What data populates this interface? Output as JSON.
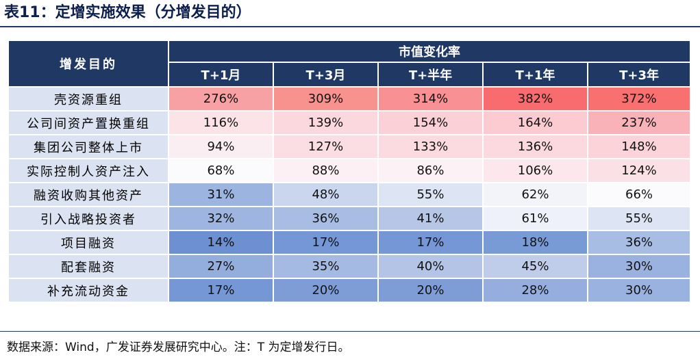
{
  "title": "表11：定增实施效果（分增发目的）",
  "footer": "数据来源：Wind，广发证券发展研究中心。注：T 为定增发行日。",
  "table": {
    "corner_header": "增发目的",
    "group_header": "市值变化率",
    "periods": [
      "T+1月",
      "T+3月",
      "T+半年",
      "T+1年",
      "T+3年"
    ],
    "rows": [
      {
        "label": "壳资源重组",
        "values": [
          "276%",
          "309%",
          "314%",
          "382%",
          "372%"
        ],
        "colors": [
          "#f8a1a5",
          "#f8928f",
          "#f89094",
          "#f86c6f",
          "#f8706f"
        ]
      },
      {
        "label": "公司间资产置换重组",
        "values": [
          "116%",
          "139%",
          "154%",
          "164%",
          "237%"
        ],
        "colors": [
          "#fbe3e8",
          "#fbd8de",
          "#fbd0d6",
          "#fbcbd1",
          "#f9b2b7"
        ]
      },
      {
        "label": "集团公司整体上市",
        "values": [
          "94%",
          "127%",
          "133%",
          "136%",
          "148%"
        ],
        "colors": [
          "#fbeef2",
          "#fbdee3",
          "#fbdbe0",
          "#fbd9df",
          "#fbd3d9"
        ]
      },
      {
        "label": "实际控制人资产注入",
        "values": [
          "68%",
          "88%",
          "86%",
          "106%",
          "124%"
        ],
        "colors": [
          "#fbfafc",
          "#fcf0f4",
          "#fcf1f5",
          "#fbe7ec",
          "#fbe0e6"
        ]
      },
      {
        "label": "融资收购其他资产",
        "values": [
          "31%",
          "48%",
          "55%",
          "62%",
          "66%"
        ],
        "colors": [
          "#9cb4e0",
          "#c9d6ee",
          "#dde5f4",
          "#f2f4fa",
          "#fbfbfe"
        ]
      },
      {
        "label": "引入战略投资者",
        "values": [
          "32%",
          "36%",
          "41%",
          "61%",
          "55%"
        ],
        "colors": [
          "#9db5e0",
          "#a8bde3",
          "#b5c6e7",
          "#eef1f9",
          "#dde5f4"
        ]
      },
      {
        "label": "项目融资",
        "values": [
          "14%",
          "17%",
          "17%",
          "18%",
          "36%"
        ],
        "colors": [
          "#6d90d2",
          "#7697d5",
          "#7697d5",
          "#789ad5",
          "#a8bde3"
        ]
      },
      {
        "label": "配套融资",
        "values": [
          "27%",
          "35%",
          "40%",
          "45%",
          "30%"
        ],
        "colors": [
          "#93addd",
          "#a5bae2",
          "#b3c4e6",
          "#bfcdea",
          "#9ab2df"
        ]
      },
      {
        "label": "补充流动资金",
        "values": [
          "17%",
          "20%",
          "20%",
          "28%",
          "30%"
        ],
        "colors": [
          "#7697d5",
          "#7e9dd7",
          "#7e9dd7",
          "#95aedd",
          "#9ab2df"
        ]
      }
    ]
  }
}
